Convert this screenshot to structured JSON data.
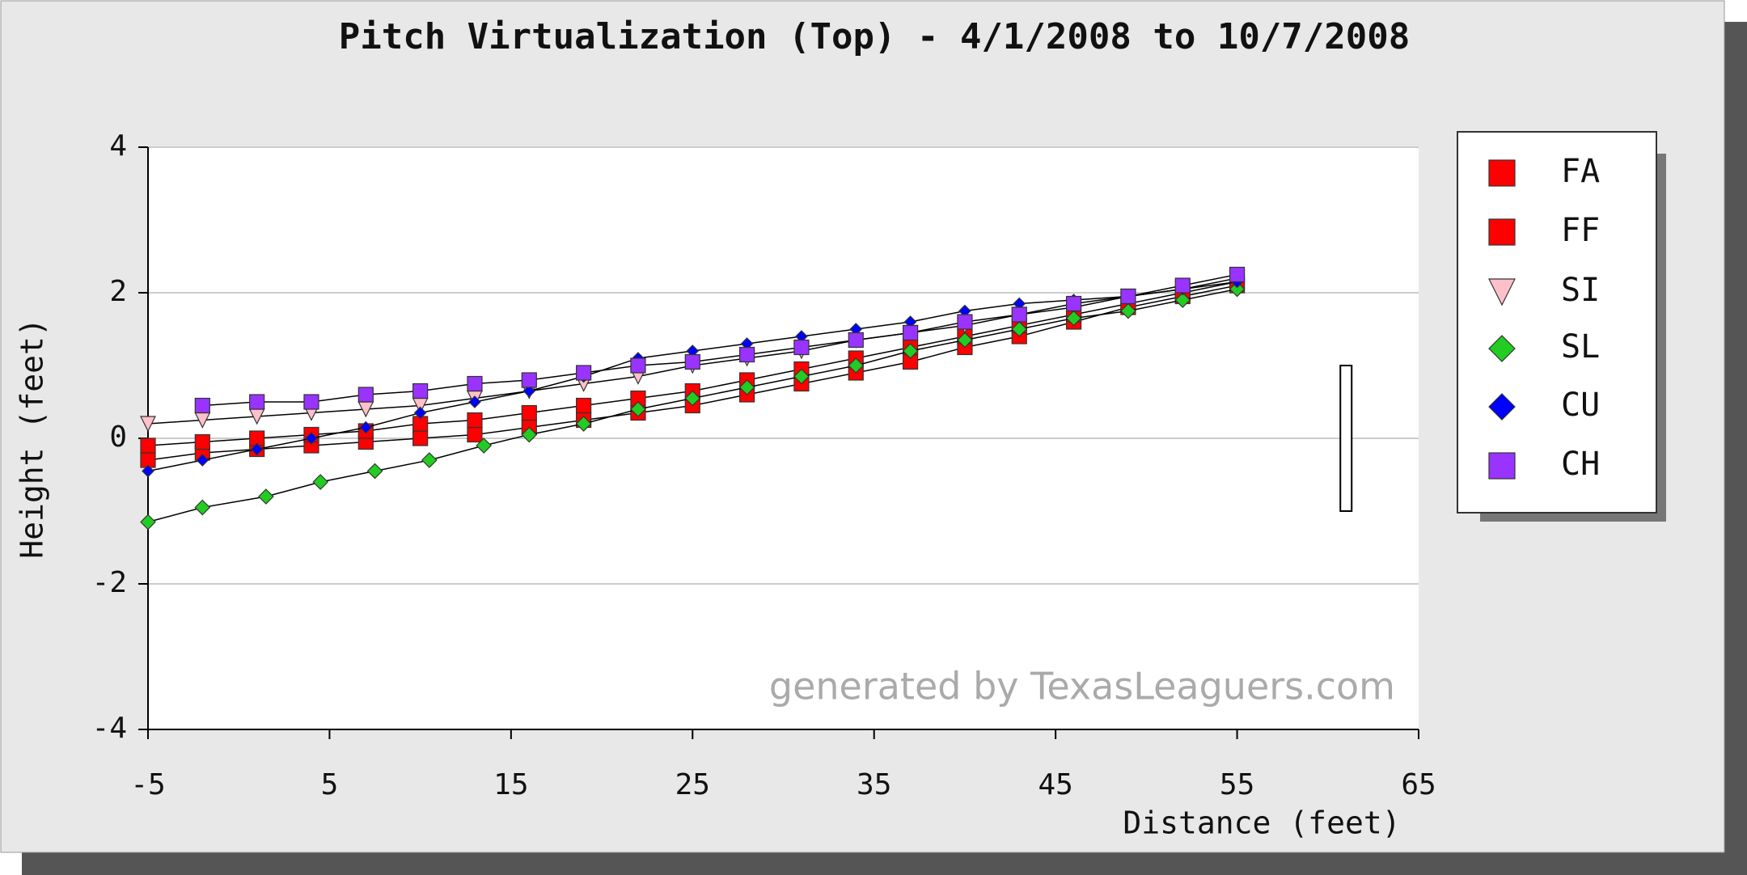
{
  "chart_data": {
    "type": "line",
    "title": "Pitch Virtualization (Top) - 4/1/2008 to 10/7/2008",
    "x_label": "Distance (feet)",
    "y_label": "Height (feet)",
    "annotation": "generated by TexasLeaguers.com",
    "xlim": [
      -5,
      65
    ],
    "xticks": [
      -5,
      5,
      15,
      25,
      35,
      45,
      55,
      65
    ],
    "ylim": [
      -4,
      4
    ],
    "yticks": [
      -4,
      -2,
      0,
      2,
      4
    ],
    "grid": true,
    "legend": "right",
    "strike_zone": {
      "x": 61,
      "bottom": -1,
      "top": 1
    },
    "series": [
      {
        "name": "FA",
        "color": "#ff0000",
        "marker": "square",
        "x": [
          55,
          52,
          49,
          46,
          43,
          40,
          37,
          34,
          31,
          28,
          25,
          22,
          19,
          16,
          13,
          10,
          7,
          4,
          1,
          -2,
          -5
        ],
        "values": [
          2.1,
          1.95,
          1.8,
          1.6,
          1.4,
          1.25,
          1.05,
          0.9,
          0.75,
          0.6,
          0.45,
          0.35,
          0.25,
          0.15,
          0.05,
          0,
          -0.05,
          -0.1,
          -0.15,
          -0.2,
          -0.3
        ]
      },
      {
        "name": "FF",
        "color": "#ff0000",
        "marker": "square",
        "x": [
          55,
          52,
          49,
          46,
          43,
          40,
          37,
          34,
          31,
          28,
          25,
          22,
          19,
          16,
          13,
          10,
          7,
          4,
          1,
          -2,
          -5
        ],
        "values": [
          2.15,
          2.0,
          1.85,
          1.7,
          1.55,
          1.4,
          1.25,
          1.1,
          0.95,
          0.8,
          0.65,
          0.55,
          0.45,
          0.35,
          0.25,
          0.2,
          0.1,
          0.05,
          0,
          -0.05,
          -0.1
        ]
      },
      {
        "name": "SI",
        "color": "#ffc0cb",
        "marker": "triangle-down",
        "x": [
          55,
          52,
          49,
          46,
          43,
          40,
          37,
          34,
          31,
          28,
          25,
          22,
          19,
          16,
          13,
          10,
          7,
          4,
          1,
          -2,
          -5
        ],
        "values": [
          2.2,
          2.05,
          1.95,
          1.8,
          1.7,
          1.55,
          1.45,
          1.35,
          1.2,
          1.1,
          1.0,
          0.85,
          0.75,
          0.65,
          0.55,
          0.45,
          0.4,
          0.35,
          0.3,
          0.25,
          0.2
        ]
      },
      {
        "name": "SL",
        "color": "#22cc22",
        "marker": "diamond",
        "x": [
          55,
          52,
          49,
          46,
          43,
          40,
          37,
          34,
          31,
          28,
          25,
          22,
          19,
          16,
          13.5,
          10.5,
          7.5,
          4.5,
          1.5,
          -2,
          -5
        ],
        "values": [
          2.05,
          1.9,
          1.75,
          1.65,
          1.5,
          1.35,
          1.2,
          1.0,
          0.85,
          0.7,
          0.55,
          0.4,
          0.2,
          0.05,
          -0.1,
          -0.3,
          -0.45,
          -0.6,
          -0.8,
          -0.95,
          -1.15
        ]
      },
      {
        "name": "CU",
        "color": "#0000ff",
        "marker": "diamond",
        "x": [
          55,
          52,
          49,
          46,
          43,
          40,
          37,
          34,
          31,
          28,
          25,
          22,
          19,
          16,
          13,
          10,
          7,
          4,
          1,
          -2,
          -5
        ],
        "values": [
          2.15,
          2.05,
          1.95,
          1.9,
          1.85,
          1.75,
          1.6,
          1.5,
          1.4,
          1.3,
          1.2,
          1.1,
          0.85,
          0.65,
          0.5,
          0.35,
          0.15,
          0,
          -0.15,
          -0.3,
          -0.45
        ]
      },
      {
        "name": "CH",
        "color": "#9933ff",
        "marker": "square",
        "x": [
          55,
          52,
          49,
          46,
          43,
          40,
          37,
          34,
          31,
          28,
          25,
          22,
          19,
          16,
          13,
          10,
          7,
          4,
          1,
          -2
        ],
        "values": [
          2.25,
          2.1,
          1.95,
          1.85,
          1.7,
          1.6,
          1.45,
          1.35,
          1.25,
          1.15,
          1.05,
          1.0,
          0.9,
          0.8,
          0.75,
          0.65,
          0.6,
          0.5,
          0.5,
          0.45
        ]
      }
    ]
  }
}
